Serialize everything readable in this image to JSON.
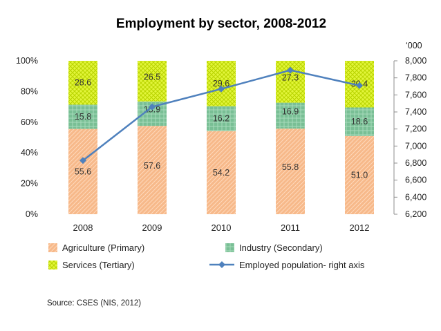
{
  "chart_data": {
    "type": "bar",
    "stacked": true,
    "title": "Employment by sector, 2008-2012",
    "categories": [
      "2008",
      "2009",
      "2010",
      "2011",
      "2012"
    ],
    "series": [
      {
        "name": "Agriculture (Primary)",
        "values": [
          55.6,
          57.6,
          54.2,
          55.8,
          51.0
        ],
        "labels": [
          "55.6",
          "57.6",
          "54.2",
          "55.8",
          "51.0"
        ],
        "color": "#f7b98a"
      },
      {
        "name": "Industry (Secondary)",
        "values": [
          15.8,
          15.9,
          16.2,
          16.9,
          18.6
        ],
        "labels": [
          "15.8",
          "15.9",
          "16.2",
          "16.9",
          "18.6"
        ],
        "color": "#7fc29b"
      },
      {
        "name": "Services (Tertiary)",
        "values": [
          28.6,
          26.5,
          29.6,
          27.3,
          30.4
        ],
        "labels": [
          "28.6",
          "26.5",
          "29.6",
          "27.3",
          "30.4"
        ],
        "color": "#d8f222"
      }
    ],
    "line_series": {
      "name": "Employed population- right axis",
      "axis": "right",
      "values": [
        6830,
        7460,
        7670,
        7890,
        7710
      ],
      "color": "#4f81bd"
    },
    "left_axis": {
      "ylim": [
        0,
        100
      ],
      "ticks": [
        0,
        20,
        40,
        60,
        80,
        100
      ],
      "tick_labels": [
        "0%",
        "20%",
        "40%",
        "60%",
        "80%",
        "100%"
      ]
    },
    "right_axis": {
      "unit_label": "‘000",
      "ylim": [
        6200,
        8000
      ],
      "ticks": [
        6200,
        6400,
        6600,
        6800,
        7000,
        7200,
        7400,
        7600,
        7800,
        8000
      ],
      "tick_labels": [
        "6,200",
        "6,400",
        "6,600",
        "6,800",
        "7,000",
        "7,200",
        "7,400",
        "7,600",
        "7,800",
        "8,000"
      ]
    },
    "legend": [
      "Agriculture (Primary)",
      "Industry (Secondary)",
      "Services (Tertiary)",
      "Employed population- right axis"
    ],
    "legend_position": "bottom",
    "source": "Source: CSES (NIS, 2012)"
  }
}
